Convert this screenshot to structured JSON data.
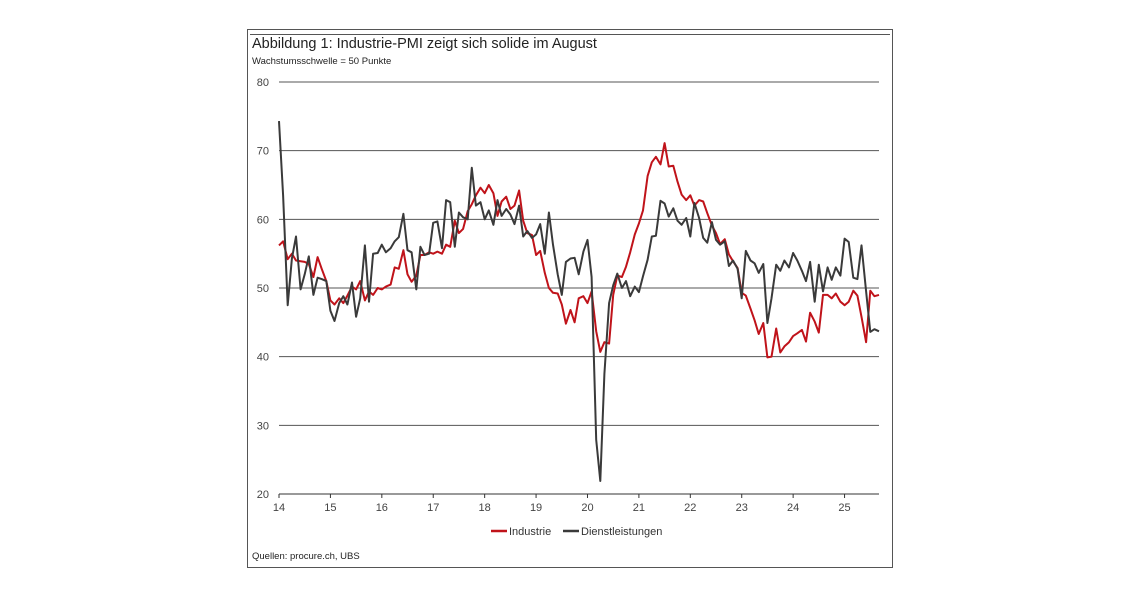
{
  "title": "Abbildung 1: Industrie-PMI zeigt sich solide im August",
  "subtitle": "Wachstumsschwelle = 50 Punkte",
  "source": "Quellen: procure.ch, UBS",
  "colors": {
    "industrie": "#c0131a",
    "dienstleistungen": "#3a3a3a",
    "grid": "#555555"
  },
  "chart_data": {
    "type": "line",
    "xlabel": "",
    "ylabel": "",
    "xlim": [
      2014.0,
      2025.67
    ],
    "ylim": [
      20,
      80
    ],
    "yticks": [
      20,
      30,
      40,
      50,
      60,
      70,
      80
    ],
    "xticks": [
      {
        "x": 2014,
        "label": "14"
      },
      {
        "x": 2015,
        "label": "15"
      },
      {
        "x": 2016,
        "label": "16"
      },
      {
        "x": 2017,
        "label": "17"
      },
      {
        "x": 2018,
        "label": "18"
      },
      {
        "x": 2019,
        "label": "19"
      },
      {
        "x": 2020,
        "label": "20"
      },
      {
        "x": 2021,
        "label": "21"
      },
      {
        "x": 2022,
        "label": "22"
      },
      {
        "x": 2023,
        "label": "23"
      },
      {
        "x": 2024,
        "label": "24"
      },
      {
        "x": 2025,
        "label": "25"
      }
    ],
    "grid": "horizontal",
    "legend_position": "bottom",
    "series": [
      {
        "name": "Industrie",
        "color": "#c0131a",
        "points": [
          [
            2014.0,
            56.2
          ],
          [
            2014.08,
            56.8
          ],
          [
            2014.17,
            54.2
          ],
          [
            2014.25,
            55.0
          ],
          [
            2014.33,
            54.0
          ],
          [
            2014.42,
            53.9
          ],
          [
            2014.5,
            53.8
          ],
          [
            2014.58,
            53.5
          ],
          [
            2014.67,
            51.6
          ],
          [
            2014.75,
            54.5
          ],
          [
            2014.83,
            52.8
          ],
          [
            2014.92,
            51.0
          ],
          [
            2015.0,
            48.2
          ],
          [
            2015.08,
            47.6
          ],
          [
            2015.17,
            48.5
          ],
          [
            2015.25,
            47.8
          ],
          [
            2015.33,
            48.9
          ],
          [
            2015.42,
            50.2
          ],
          [
            2015.5,
            49.8
          ],
          [
            2015.58,
            51.0
          ],
          [
            2015.67,
            48.2
          ],
          [
            2015.75,
            49.5
          ],
          [
            2015.83,
            49.0
          ],
          [
            2015.92,
            50.0
          ],
          [
            2016.0,
            49.8
          ],
          [
            2016.08,
            50.2
          ],
          [
            2016.17,
            50.5
          ],
          [
            2016.25,
            53.0
          ],
          [
            2016.33,
            52.8
          ],
          [
            2016.42,
            55.5
          ],
          [
            2016.5,
            52.0
          ],
          [
            2016.58,
            50.9
          ],
          [
            2016.67,
            51.8
          ],
          [
            2016.75,
            54.8
          ],
          [
            2016.83,
            54.8
          ],
          [
            2016.92,
            55.2
          ],
          [
            2017.0,
            55.0
          ],
          [
            2017.08,
            55.3
          ],
          [
            2017.17,
            55.0
          ],
          [
            2017.25,
            56.3
          ],
          [
            2017.33,
            56.0
          ],
          [
            2017.42,
            59.8
          ],
          [
            2017.5,
            58.0
          ],
          [
            2017.58,
            58.6
          ],
          [
            2017.67,
            61.2
          ],
          [
            2017.75,
            62.2
          ],
          [
            2017.83,
            63.5
          ],
          [
            2017.92,
            64.6
          ],
          [
            2018.0,
            63.8
          ],
          [
            2018.08,
            65.0
          ],
          [
            2018.17,
            63.8
          ],
          [
            2018.25,
            60.5
          ],
          [
            2018.33,
            62.6
          ],
          [
            2018.42,
            63.3
          ],
          [
            2018.5,
            61.5
          ],
          [
            2018.58,
            62.0
          ],
          [
            2018.67,
            64.2
          ],
          [
            2018.75,
            59.8
          ],
          [
            2018.83,
            58.0
          ],
          [
            2018.92,
            57.7
          ],
          [
            2019.0,
            54.8
          ],
          [
            2019.08,
            55.4
          ],
          [
            2019.17,
            52.2
          ],
          [
            2019.25,
            50.0
          ],
          [
            2019.33,
            49.3
          ],
          [
            2019.42,
            49.2
          ],
          [
            2019.5,
            47.6
          ],
          [
            2019.58,
            44.8
          ],
          [
            2019.67,
            46.8
          ],
          [
            2019.75,
            45.0
          ],
          [
            2019.83,
            48.5
          ],
          [
            2019.92,
            48.8
          ],
          [
            2020.0,
            47.8
          ],
          [
            2020.08,
            49.5
          ],
          [
            2020.17,
            43.7
          ],
          [
            2020.25,
            40.7
          ],
          [
            2020.33,
            42.1
          ],
          [
            2020.42,
            41.9
          ],
          [
            2020.5,
            49.0
          ],
          [
            2020.58,
            51.8
          ],
          [
            2020.67,
            51.6
          ],
          [
            2020.75,
            53.1
          ],
          [
            2020.83,
            55.2
          ],
          [
            2020.92,
            57.8
          ],
          [
            2021.0,
            59.4
          ],
          [
            2021.08,
            61.3
          ],
          [
            2021.17,
            66.3
          ],
          [
            2021.25,
            68.3
          ],
          [
            2021.33,
            69.1
          ],
          [
            2021.42,
            68.0
          ],
          [
            2021.5,
            71.1
          ],
          [
            2021.58,
            67.7
          ],
          [
            2021.67,
            67.8
          ],
          [
            2021.75,
            65.5
          ],
          [
            2021.83,
            63.6
          ],
          [
            2021.92,
            62.8
          ],
          [
            2022.0,
            63.5
          ],
          [
            2022.08,
            62.0
          ],
          [
            2022.17,
            62.8
          ],
          [
            2022.25,
            62.6
          ],
          [
            2022.33,
            60.9
          ],
          [
            2022.42,
            59.1
          ],
          [
            2022.5,
            58.0
          ],
          [
            2022.58,
            56.4
          ],
          [
            2022.67,
            57.1
          ],
          [
            2022.75,
            54.9
          ],
          [
            2022.83,
            53.9
          ],
          [
            2022.92,
            52.9
          ],
          [
            2023.0,
            49.3
          ],
          [
            2023.08,
            48.9
          ],
          [
            2023.17,
            47.0
          ],
          [
            2023.25,
            45.3
          ],
          [
            2023.33,
            43.3
          ],
          [
            2023.42,
            44.9
          ],
          [
            2023.5,
            39.9
          ],
          [
            2023.58,
            40.0
          ],
          [
            2023.67,
            44.1
          ],
          [
            2023.75,
            40.6
          ],
          [
            2023.83,
            41.5
          ],
          [
            2023.92,
            42.1
          ],
          [
            2024.0,
            43.0
          ],
          [
            2024.08,
            43.4
          ],
          [
            2024.17,
            43.9
          ],
          [
            2024.25,
            42.2
          ],
          [
            2024.33,
            46.4
          ],
          [
            2024.42,
            45.1
          ],
          [
            2024.5,
            43.5
          ],
          [
            2024.58,
            49.0
          ],
          [
            2024.67,
            49.0
          ],
          [
            2024.75,
            48.5
          ],
          [
            2024.83,
            49.2
          ],
          [
            2024.92,
            48.0
          ],
          [
            2025.0,
            47.5
          ],
          [
            2025.08,
            48.0
          ],
          [
            2025.17,
            49.6
          ],
          [
            2025.25,
            48.9
          ],
          [
            2025.33,
            45.8
          ],
          [
            2025.42,
            42.1
          ],
          [
            2025.5,
            49.6
          ],
          [
            2025.58,
            48.8
          ],
          [
            2025.67,
            49.0
          ]
        ]
      },
      {
        "name": "Dienstleistungen",
        "color": "#3a3a3a",
        "points": [
          [
            2014.0,
            74.3
          ],
          [
            2014.08,
            63.5
          ],
          [
            2014.17,
            47.5
          ],
          [
            2014.25,
            54.3
          ],
          [
            2014.33,
            57.5
          ],
          [
            2014.42,
            49.8
          ],
          [
            2014.5,
            52.0
          ],
          [
            2014.58,
            54.6
          ],
          [
            2014.67,
            49.0
          ],
          [
            2014.75,
            51.5
          ],
          [
            2014.83,
            51.3
          ],
          [
            2014.92,
            51.0
          ],
          [
            2015.0,
            46.7
          ],
          [
            2015.08,
            45.2
          ],
          [
            2015.17,
            47.8
          ],
          [
            2015.25,
            48.8
          ],
          [
            2015.33,
            47.6
          ],
          [
            2015.42,
            50.8
          ],
          [
            2015.5,
            45.8
          ],
          [
            2015.58,
            48.5
          ],
          [
            2015.67,
            56.2
          ],
          [
            2015.75,
            48.0
          ],
          [
            2015.83,
            55.0
          ],
          [
            2015.92,
            55.1
          ],
          [
            2016.0,
            56.3
          ],
          [
            2016.08,
            55.2
          ],
          [
            2016.17,
            55.8
          ],
          [
            2016.25,
            56.8
          ],
          [
            2016.33,
            57.4
          ],
          [
            2016.42,
            60.8
          ],
          [
            2016.5,
            55.5
          ],
          [
            2016.58,
            55.2
          ],
          [
            2016.67,
            49.8
          ],
          [
            2016.75,
            56.0
          ],
          [
            2016.83,
            54.8
          ],
          [
            2016.92,
            55.0
          ],
          [
            2017.0,
            59.5
          ],
          [
            2017.08,
            59.7
          ],
          [
            2017.17,
            55.8
          ],
          [
            2017.25,
            62.8
          ],
          [
            2017.33,
            62.5
          ],
          [
            2017.42,
            56.0
          ],
          [
            2017.5,
            61.0
          ],
          [
            2017.58,
            60.3
          ],
          [
            2017.67,
            60.0
          ],
          [
            2017.75,
            67.5
          ],
          [
            2017.83,
            62.0
          ],
          [
            2017.92,
            62.5
          ],
          [
            2018.0,
            60.0
          ],
          [
            2018.08,
            61.3
          ],
          [
            2018.17,
            59.2
          ],
          [
            2018.25,
            62.8
          ],
          [
            2018.33,
            60.5
          ],
          [
            2018.42,
            61.5
          ],
          [
            2018.5,
            60.7
          ],
          [
            2018.58,
            59.3
          ],
          [
            2018.67,
            62.0
          ],
          [
            2018.75,
            57.5
          ],
          [
            2018.83,
            58.3
          ],
          [
            2018.92,
            57.3
          ],
          [
            2019.0,
            57.8
          ],
          [
            2019.08,
            59.3
          ],
          [
            2019.17,
            55.0
          ],
          [
            2019.25,
            61.0
          ],
          [
            2019.33,
            56.3
          ],
          [
            2019.42,
            52.0
          ],
          [
            2019.5,
            49.0
          ],
          [
            2019.58,
            53.8
          ],
          [
            2019.67,
            54.3
          ],
          [
            2019.75,
            54.4
          ],
          [
            2019.83,
            52.0
          ],
          [
            2019.92,
            55.3
          ],
          [
            2020.0,
            57.0
          ],
          [
            2020.08,
            51.6
          ],
          [
            2020.17,
            27.9
          ],
          [
            2020.25,
            21.9
          ],
          [
            2020.33,
            37.5
          ],
          [
            2020.42,
            47.8
          ],
          [
            2020.5,
            50.4
          ],
          [
            2020.58,
            52.1
          ],
          [
            2020.67,
            50.0
          ],
          [
            2020.75,
            51.0
          ],
          [
            2020.83,
            48.8
          ],
          [
            2020.92,
            50.2
          ],
          [
            2021.0,
            49.4
          ],
          [
            2021.08,
            51.7
          ],
          [
            2021.17,
            54.1
          ],
          [
            2021.25,
            57.5
          ],
          [
            2021.33,
            57.6
          ],
          [
            2021.42,
            62.7
          ],
          [
            2021.5,
            62.3
          ],
          [
            2021.58,
            60.4
          ],
          [
            2021.67,
            61.6
          ],
          [
            2021.75,
            59.8
          ],
          [
            2021.83,
            59.2
          ],
          [
            2021.92,
            60.2
          ],
          [
            2022.0,
            57.5
          ],
          [
            2022.08,
            62.4
          ],
          [
            2022.17,
            60.2
          ],
          [
            2022.25,
            57.3
          ],
          [
            2022.33,
            56.6
          ],
          [
            2022.42,
            59.6
          ],
          [
            2022.5,
            57.0
          ],
          [
            2022.58,
            56.3
          ],
          [
            2022.67,
            56.8
          ],
          [
            2022.75,
            53.2
          ],
          [
            2022.83,
            54.0
          ],
          [
            2022.92,
            52.8
          ],
          [
            2023.0,
            48.5
          ],
          [
            2023.08,
            55.4
          ],
          [
            2023.17,
            54.0
          ],
          [
            2023.25,
            53.6
          ],
          [
            2023.33,
            52.2
          ],
          [
            2023.42,
            53.5
          ],
          [
            2023.5,
            44.9
          ],
          [
            2023.58,
            48.5
          ],
          [
            2023.67,
            53.4
          ],
          [
            2023.75,
            52.5
          ],
          [
            2023.83,
            54.0
          ],
          [
            2023.92,
            53.0
          ],
          [
            2024.0,
            55.1
          ],
          [
            2024.08,
            54.0
          ],
          [
            2024.17,
            52.5
          ],
          [
            2024.25,
            51.0
          ],
          [
            2024.33,
            53.8
          ],
          [
            2024.42,
            48.0
          ],
          [
            2024.5,
            53.4
          ],
          [
            2024.58,
            49.5
          ],
          [
            2024.67,
            53.0
          ],
          [
            2024.75,
            51.2
          ],
          [
            2024.83,
            53.0
          ],
          [
            2024.92,
            51.8
          ],
          [
            2025.0,
            57.2
          ],
          [
            2025.08,
            56.7
          ],
          [
            2025.17,
            51.5
          ],
          [
            2025.25,
            51.3
          ],
          [
            2025.33,
            56.2
          ],
          [
            2025.42,
            49.5
          ],
          [
            2025.5,
            43.6
          ],
          [
            2025.58,
            44.0
          ],
          [
            2025.67,
            43.7
          ]
        ]
      }
    ]
  }
}
